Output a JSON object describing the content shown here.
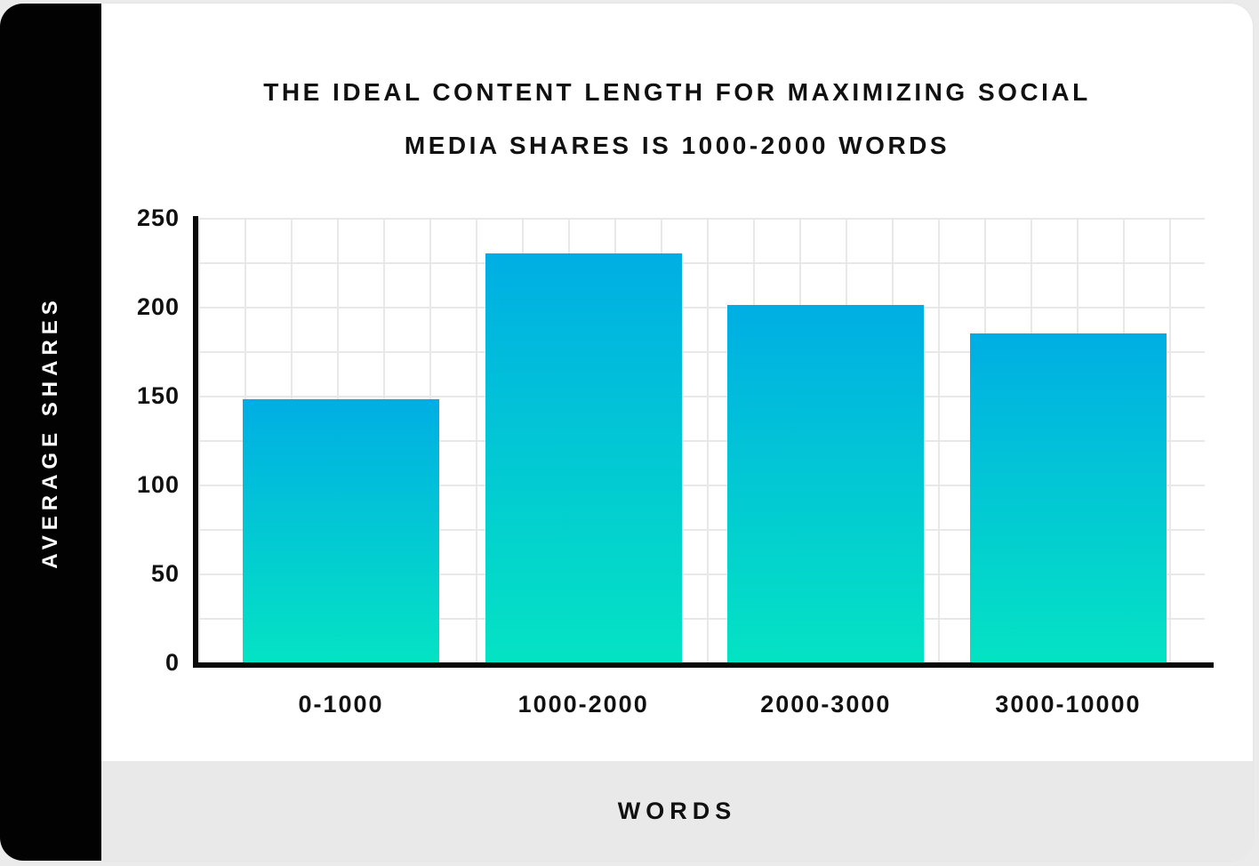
{
  "page": {
    "background_color": "#ebebeb",
    "frame_color": "#020202",
    "card_color": "#ffffff",
    "footer_color": "#e9e9e9"
  },
  "title": {
    "line1": "THE IDEAL CONTENT LENGTH FOR MAXIMIZING SOCIAL",
    "line2": "MEDIA SHARES IS 1000-2000 WORDS"
  },
  "y_axis_label": "AVERAGE SHARES",
  "x_axis_label": "WORDS",
  "chart_data": {
    "type": "bar",
    "title": "THE IDEAL CONTENT LENGTH FOR MAXIMIZING SOCIAL MEDIA SHARES IS 1000-2000 WORDS",
    "categories": [
      "0-1000",
      "1000-2000",
      "2000-3000",
      "3000-10000"
    ],
    "values": [
      149,
      231,
      202,
      186
    ],
    "xlabel": "WORDS",
    "ylabel": "AVERAGE SHARES",
    "ylim": [
      0,
      250
    ],
    "yticks": [
      250,
      200,
      150,
      100,
      50,
      0
    ],
    "grid": true,
    "gridline_color": "#e8e8e8",
    "axis_color": "#0a0a0a",
    "bar_gradient_top": "#00AEE4",
    "bar_gradient_bottom": "#04E3C3",
    "legend": "none"
  }
}
